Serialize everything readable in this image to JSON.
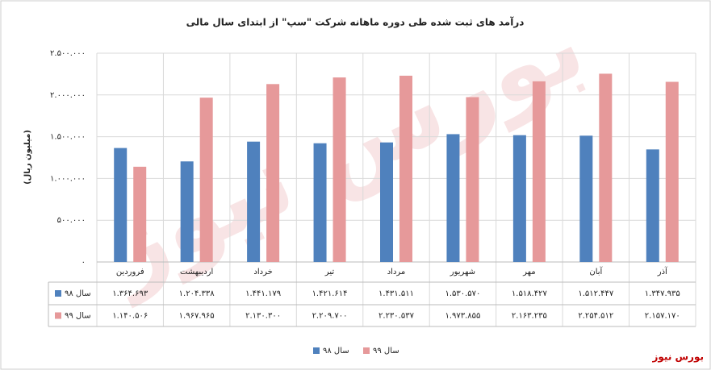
{
  "chart_data": {
    "type": "bar",
    "title": "درآمد های ثبت شده طی دوره ماهانه شرکت \"سپ\" از ابتدای سال مالی",
    "y_label": "(میلیون ریال)",
    "watermark": "بورس نیوز",
    "categories": [
      "فروردین",
      "اردیبهشت",
      "خرداد",
      "تیر",
      "مرداد",
      "شهریور",
      "مهر",
      "آبان",
      "آذر"
    ],
    "series": [
      {
        "name": "سال ۹۸",
        "color": "#4f81bd",
        "values": [
          1364693,
          1204338,
          1441179,
          1421614,
          1431511,
          1530570,
          1518427,
          1512447,
          1347935
        ],
        "value_labels": [
          "۱.۳۶۴.۶۹۳",
          "۱.۲۰۴.۳۳۸",
          "۱.۴۴۱.۱۷۹",
          "۱.۴۲۱.۶۱۴",
          "۱.۴۳۱.۵۱۱",
          "۱.۵۳۰.۵۷۰",
          "۱.۵۱۸.۴۲۷",
          "۱.۵۱۲.۴۴۷",
          "۱.۳۴۷.۹۳۵"
        ]
      },
      {
        "name": "سال ۹۹",
        "color": "#e6999a",
        "values": [
          1140506,
          1967965,
          2130300,
          2209700,
          2230537,
          1973855,
          2163235,
          2254512,
          2157170
        ],
        "value_labels": [
          "۱.۱۴۰.۵۰۶",
          "۱.۹۶۷.۹۶۵",
          "۲.۱۳۰.۳۰۰",
          "۲.۲۰۹.۷۰۰",
          "۲.۲۳۰.۵۳۷",
          "۱.۹۷۳.۸۵۵",
          "۲.۱۶۳.۲۳۵",
          "۲.۲۵۴.۵۱۲",
          "۲.۱۵۷.۱۷۰"
        ]
      }
    ],
    "ylim": [
      0,
      2500000
    ],
    "yticks": [
      {
        "value": 0,
        "label": "۰"
      },
      {
        "value": 500000,
        "label": "۵۰۰.۰۰۰"
      },
      {
        "value": 1000000,
        "label": "۱.۰۰۰.۰۰۰"
      },
      {
        "value": 1500000,
        "label": "۱.۵۰۰.۰۰۰"
      },
      {
        "value": 2000000,
        "label": "۲.۰۰۰.۰۰۰"
      },
      {
        "value": 2500000,
        "label": "۲.۵۰۰.۰۰۰"
      }
    ],
    "grid": true
  }
}
